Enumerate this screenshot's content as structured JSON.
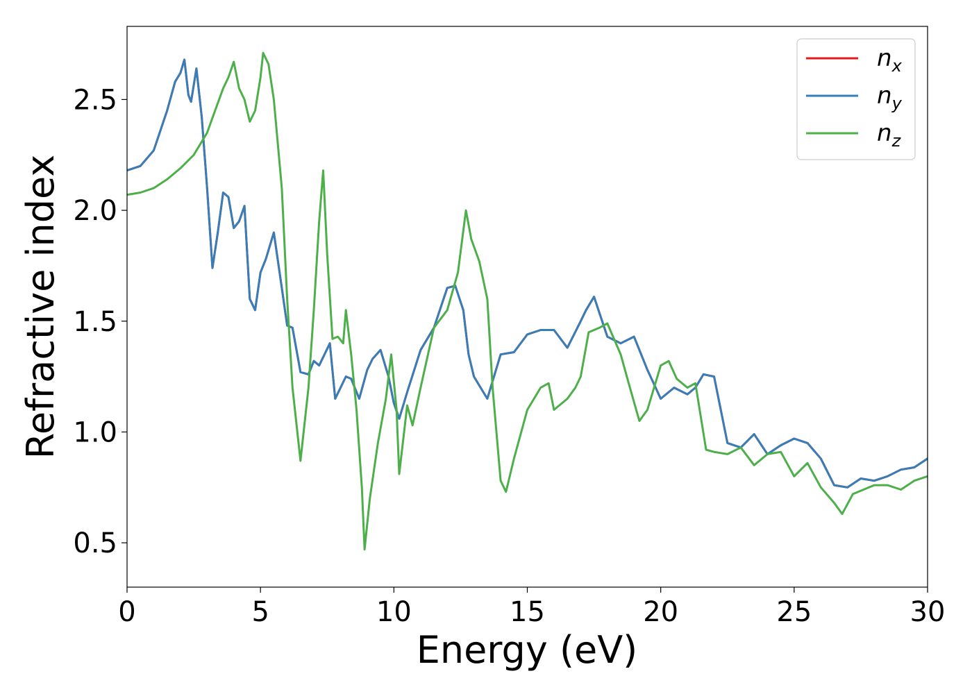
{
  "chart_data": {
    "type": "line",
    "title": "",
    "xlabel": "Energy (eV)",
    "ylabel": "Refractive index",
    "xlim": [
      0,
      30
    ],
    "ylim": [
      0.3,
      2.83
    ],
    "xticks": [
      0,
      5,
      10,
      15,
      20,
      25,
      30
    ],
    "xtick_labels": [
      "0",
      "5",
      "10",
      "15",
      "20",
      "25",
      "30"
    ],
    "yticks": [
      0.5,
      1.0,
      1.5,
      2.0,
      2.5
    ],
    "ytick_labels": [
      "0.5",
      "1.0",
      "1.5",
      "2.0",
      "2.5"
    ],
    "grid": false,
    "legend_position": "top-right",
    "series": [
      {
        "name": "n_x",
        "legend_base": "n",
        "legend_sub": "x",
        "color": "#e41a1c",
        "x": [
          0,
          0.5,
          1.0,
          1.5,
          1.8,
          2.0,
          2.15,
          2.3,
          2.4,
          2.6,
          2.8,
          3.0,
          3.2,
          3.4,
          3.6,
          3.8,
          4.0,
          4.2,
          4.4,
          4.6,
          4.8,
          5.0,
          5.2,
          5.5,
          5.8,
          6.0,
          6.2,
          6.5,
          6.8,
          7.0,
          7.2,
          7.4,
          7.6,
          7.8,
          8.0,
          8.2,
          8.4,
          8.7,
          9.0,
          9.2,
          9.5,
          9.8,
          10.0,
          10.2,
          10.5,
          11.0,
          11.5,
          12.0,
          12.3,
          12.6,
          12.8,
          13.0,
          13.5,
          14.0,
          14.5,
          15.0,
          15.5,
          16.0,
          16.5,
          17.0,
          17.2,
          17.5,
          18.0,
          18.5,
          19.0,
          19.5,
          20.0,
          20.5,
          21.0,
          21.3,
          21.6,
          22.0,
          22.5,
          23.0,
          23.5,
          24.0,
          24.5,
          25.0,
          25.5,
          26.0,
          26.5,
          27.0,
          27.5,
          28.0,
          28.5,
          29.0,
          29.5,
          30.0
        ],
        "y": [
          2.18,
          2.2,
          2.27,
          2.45,
          2.58,
          2.62,
          2.68,
          2.52,
          2.49,
          2.64,
          2.42,
          2.1,
          1.74,
          1.9,
          2.08,
          2.06,
          1.92,
          1.95,
          2.02,
          1.6,
          1.55,
          1.72,
          1.78,
          1.9,
          1.65,
          1.48,
          1.47,
          1.27,
          1.26,
          1.32,
          1.3,
          1.35,
          1.4,
          1.15,
          1.2,
          1.25,
          1.24,
          1.15,
          1.28,
          1.33,
          1.37,
          1.25,
          1.13,
          1.06,
          1.18,
          1.37,
          1.47,
          1.65,
          1.66,
          1.55,
          1.35,
          1.25,
          1.15,
          1.35,
          1.36,
          1.44,
          1.46,
          1.46,
          1.38,
          1.5,
          1.55,
          1.61,
          1.43,
          1.4,
          1.43,
          1.28,
          1.15,
          1.2,
          1.17,
          1.2,
          1.26,
          1.25,
          0.95,
          0.93,
          0.99,
          0.9,
          0.94,
          0.97,
          0.95,
          0.88,
          0.76,
          0.75,
          0.79,
          0.78,
          0.8,
          0.83,
          0.84,
          0.88
        ]
      },
      {
        "name": "n_y",
        "legend_base": "n",
        "legend_sub": "y",
        "color": "#377eb8",
        "x": [
          0,
          0.5,
          1.0,
          1.5,
          1.8,
          2.0,
          2.15,
          2.3,
          2.4,
          2.6,
          2.8,
          3.0,
          3.2,
          3.4,
          3.6,
          3.8,
          4.0,
          4.2,
          4.4,
          4.6,
          4.8,
          5.0,
          5.2,
          5.5,
          5.8,
          6.0,
          6.2,
          6.5,
          6.8,
          7.0,
          7.2,
          7.4,
          7.6,
          7.8,
          8.0,
          8.2,
          8.4,
          8.7,
          9.0,
          9.2,
          9.5,
          9.8,
          10.0,
          10.2,
          10.5,
          11.0,
          11.5,
          12.0,
          12.3,
          12.6,
          12.8,
          13.0,
          13.5,
          14.0,
          14.5,
          15.0,
          15.5,
          16.0,
          16.5,
          17.0,
          17.2,
          17.5,
          18.0,
          18.5,
          19.0,
          19.5,
          20.0,
          20.5,
          21.0,
          21.3,
          21.6,
          22.0,
          22.5,
          23.0,
          23.5,
          24.0,
          24.5,
          25.0,
          25.5,
          26.0,
          26.5,
          27.0,
          27.5,
          28.0,
          28.5,
          29.0,
          29.5,
          30.0
        ],
        "y": [
          2.18,
          2.2,
          2.27,
          2.45,
          2.58,
          2.62,
          2.68,
          2.52,
          2.49,
          2.64,
          2.42,
          2.1,
          1.74,
          1.9,
          2.08,
          2.06,
          1.92,
          1.95,
          2.02,
          1.6,
          1.55,
          1.72,
          1.78,
          1.9,
          1.65,
          1.48,
          1.47,
          1.27,
          1.26,
          1.32,
          1.3,
          1.35,
          1.4,
          1.15,
          1.2,
          1.25,
          1.24,
          1.15,
          1.28,
          1.33,
          1.37,
          1.25,
          1.13,
          1.06,
          1.18,
          1.37,
          1.47,
          1.65,
          1.66,
          1.55,
          1.35,
          1.25,
          1.15,
          1.35,
          1.36,
          1.44,
          1.46,
          1.46,
          1.38,
          1.5,
          1.55,
          1.61,
          1.43,
          1.4,
          1.43,
          1.28,
          1.15,
          1.2,
          1.17,
          1.2,
          1.26,
          1.25,
          0.95,
          0.93,
          0.99,
          0.9,
          0.94,
          0.97,
          0.95,
          0.88,
          0.76,
          0.75,
          0.79,
          0.78,
          0.8,
          0.83,
          0.84,
          0.88
        ]
      },
      {
        "name": "n_z",
        "legend_base": "n",
        "legend_sub": "z",
        "color": "#4daf4a",
        "x": [
          0,
          0.5,
          1.0,
          1.5,
          2.0,
          2.5,
          3.0,
          3.3,
          3.6,
          3.8,
          4.0,
          4.2,
          4.4,
          4.6,
          4.8,
          5.0,
          5.1,
          5.3,
          5.5,
          5.8,
          6.0,
          6.2,
          6.5,
          6.8,
          7.0,
          7.2,
          7.35,
          7.5,
          7.7,
          7.9,
          8.1,
          8.2,
          8.4,
          8.6,
          8.8,
          8.9,
          9.1,
          9.4,
          9.7,
          9.9,
          10.1,
          10.2,
          10.5,
          10.7,
          11.0,
          11.5,
          12.0,
          12.4,
          12.7,
          12.9,
          13.2,
          13.5,
          13.7,
          14.0,
          14.2,
          14.5,
          15.0,
          15.5,
          15.8,
          16.0,
          16.5,
          16.8,
          17.0,
          17.3,
          17.7,
          18.0,
          18.5,
          18.8,
          19.2,
          19.5,
          20.0,
          20.3,
          20.6,
          21.0,
          21.3,
          21.7,
          22.0,
          22.5,
          23.0,
          23.5,
          24.0,
          24.5,
          25.0,
          25.5,
          26.0,
          26.5,
          26.8,
          27.2,
          27.6,
          28.0,
          28.5,
          29.0,
          29.5,
          30.0
        ],
        "y": [
          2.07,
          2.08,
          2.1,
          2.14,
          2.19,
          2.25,
          2.35,
          2.45,
          2.55,
          2.6,
          2.67,
          2.55,
          2.5,
          2.4,
          2.45,
          2.6,
          2.71,
          2.66,
          2.5,
          2.1,
          1.6,
          1.2,
          0.87,
          1.2,
          1.55,
          1.95,
          2.18,
          1.8,
          1.42,
          1.43,
          1.4,
          1.55,
          1.35,
          1.1,
          0.75,
          0.47,
          0.7,
          0.95,
          1.15,
          1.35,
          1.1,
          0.81,
          1.12,
          1.03,
          1.2,
          1.47,
          1.55,
          1.72,
          2.0,
          1.87,
          1.77,
          1.6,
          1.2,
          0.78,
          0.73,
          0.88,
          1.1,
          1.2,
          1.22,
          1.1,
          1.15,
          1.2,
          1.25,
          1.45,
          1.47,
          1.49,
          1.35,
          1.22,
          1.05,
          1.1,
          1.3,
          1.32,
          1.24,
          1.2,
          1.22,
          0.92,
          0.91,
          0.9,
          0.93,
          0.85,
          0.9,
          0.91,
          0.8,
          0.86,
          0.75,
          0.68,
          0.63,
          0.72,
          0.74,
          0.76,
          0.76,
          0.74,
          0.78,
          0.8
        ]
      }
    ]
  }
}
